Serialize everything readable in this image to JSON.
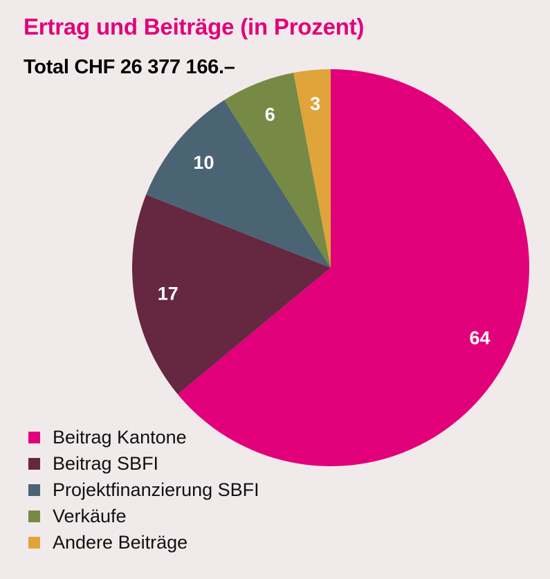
{
  "title": "Ertrag und Beiträge (in Prozent)",
  "subtitle": "Total CHF 26 377 166.–",
  "chart_data": {
    "type": "pie",
    "title": "Ertrag und Beiträge (in Prozent)",
    "subtitle": "Total CHF 26 377 166.–",
    "categories": [
      "Beitrag Kantone",
      "Beitrag SBFI",
      "Projektfinanzierung SBFI",
      "Verkäufe",
      "Andere Beiträge"
    ],
    "values": [
      64,
      17,
      10,
      6,
      3
    ],
    "labels": [
      "64",
      "17",
      "10",
      "6",
      "3"
    ],
    "colors": [
      "#e2007a",
      "#652840",
      "#4b6474",
      "#768a45",
      "#e0a43a"
    ],
    "legend": "bottom-left"
  }
}
